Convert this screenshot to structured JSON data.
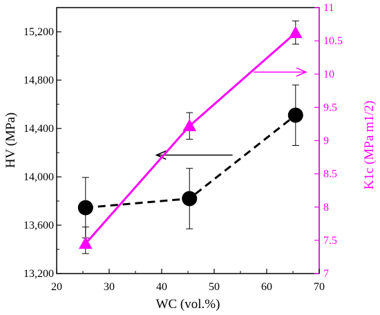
{
  "chart_data": {
    "type": "line",
    "title": "",
    "xlabel": "WC (vol.%)",
    "ylabel_left": "HV (MPa)",
    "ylabel_right": "K1c (MPa m1/2)",
    "xlim": [
      20,
      70
    ],
    "ylim_left": [
      13200,
      15400
    ],
    "ylim_right": [
      7,
      11
    ],
    "xticks": [
      20,
      30,
      40,
      50,
      60,
      70
    ],
    "yticks_left": [
      13200,
      13600,
      14000,
      14400,
      14800,
      15200
    ],
    "yticks_left_labels": [
      "13,200",
      "13,600",
      "14,000",
      "14,400",
      "14,800",
      "15,200"
    ],
    "yticks_right": [
      7,
      7.5,
      8,
      8.5,
      9,
      9.5,
      10,
      10.5,
      11
    ],
    "yticks_right_labels": [
      "7",
      "7.5",
      "8",
      "8.5",
      "9",
      "9.5",
      "10",
      "10.5",
      "11"
    ],
    "grid": false,
    "series": [
      {
        "axis": "left",
        "x": [
          25.5,
          45.3,
          65.5
        ],
        "y": [
          13745,
          13820,
          14510
        ],
        "error": [
          250,
          250,
          250
        ],
        "color": "#000000",
        "marker": "circle",
        "line": "dashed"
      },
      {
        "axis": "right",
        "x": [
          25.5,
          45.3,
          65.5
        ],
        "y": [
          7.45,
          9.22,
          10.62
        ],
        "error_low": [
          7.3,
          9.02,
          10.45
        ],
        "error_high": [
          7.7,
          9.42,
          10.8
        ],
        "color": "#ff00ff",
        "marker": "triangle",
        "line": "solid"
      }
    ],
    "annotations": [
      {
        "type": "arrow",
        "direction": "left",
        "color": "#000000",
        "points_to": "left axis",
        "x_from": 53.5,
        "x_to": 39,
        "y_left": 14180
      },
      {
        "type": "arrow",
        "direction": "right",
        "color": "#ff00ff",
        "points_to": "right axis",
        "x_from": 57.5,
        "x_to": 67.5,
        "y_right": 10.03
      }
    ]
  }
}
